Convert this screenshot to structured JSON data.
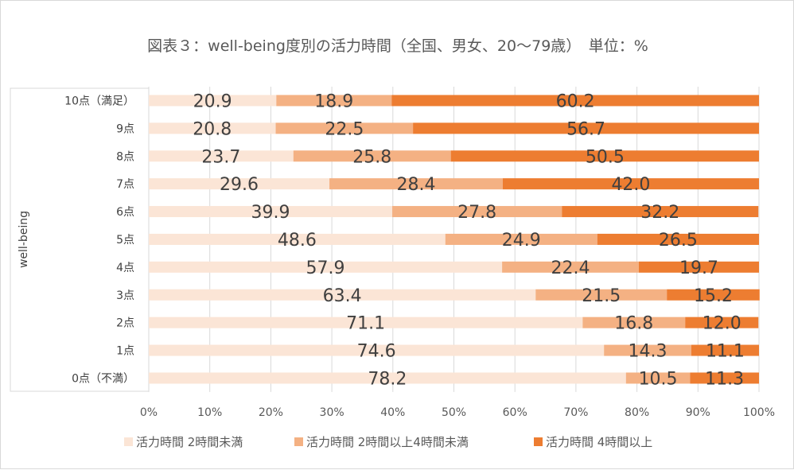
{
  "chart_data": {
    "type": "bar",
    "orientation": "horizontal",
    "stacked": "percent",
    "title": "図表３：well-being度別の活力時間（全国、男女、20～79歳）　単位：%",
    "ylabel": "well-being",
    "xlabel": "",
    "xlim": [
      0,
      100
    ],
    "x_ticks": [
      "0%",
      "10%",
      "20%",
      "30%",
      "40%",
      "50%",
      "60%",
      "70%",
      "80%",
      "90%",
      "100%"
    ],
    "grid": true,
    "legend_position": "bottom",
    "categories": [
      "10点（満足）",
      "9点",
      "8点",
      "7点",
      "6点",
      "5点",
      "4点",
      "3点",
      "2点",
      "1点",
      "0点（不満）"
    ],
    "series": [
      {
        "name": "活力時間 2時間未満",
        "color": "#fbe5d6",
        "values": [
          20.9,
          20.8,
          23.7,
          29.6,
          39.9,
          48.6,
          57.9,
          63.4,
          71.1,
          74.6,
          78.2
        ]
      },
      {
        "name": "活力時間 2時間以上4時間未満",
        "color": "#f4b183",
        "values": [
          18.9,
          22.5,
          25.8,
          28.4,
          27.8,
          24.9,
          22.4,
          21.5,
          16.8,
          14.3,
          10.5
        ]
      },
      {
        "name": "活力時間 4時間以上",
        "color": "#ed7d31",
        "values": [
          60.2,
          56.7,
          50.5,
          42.0,
          32.2,
          26.5,
          19.7,
          15.2,
          12.0,
          11.1,
          11.3
        ]
      }
    ]
  }
}
